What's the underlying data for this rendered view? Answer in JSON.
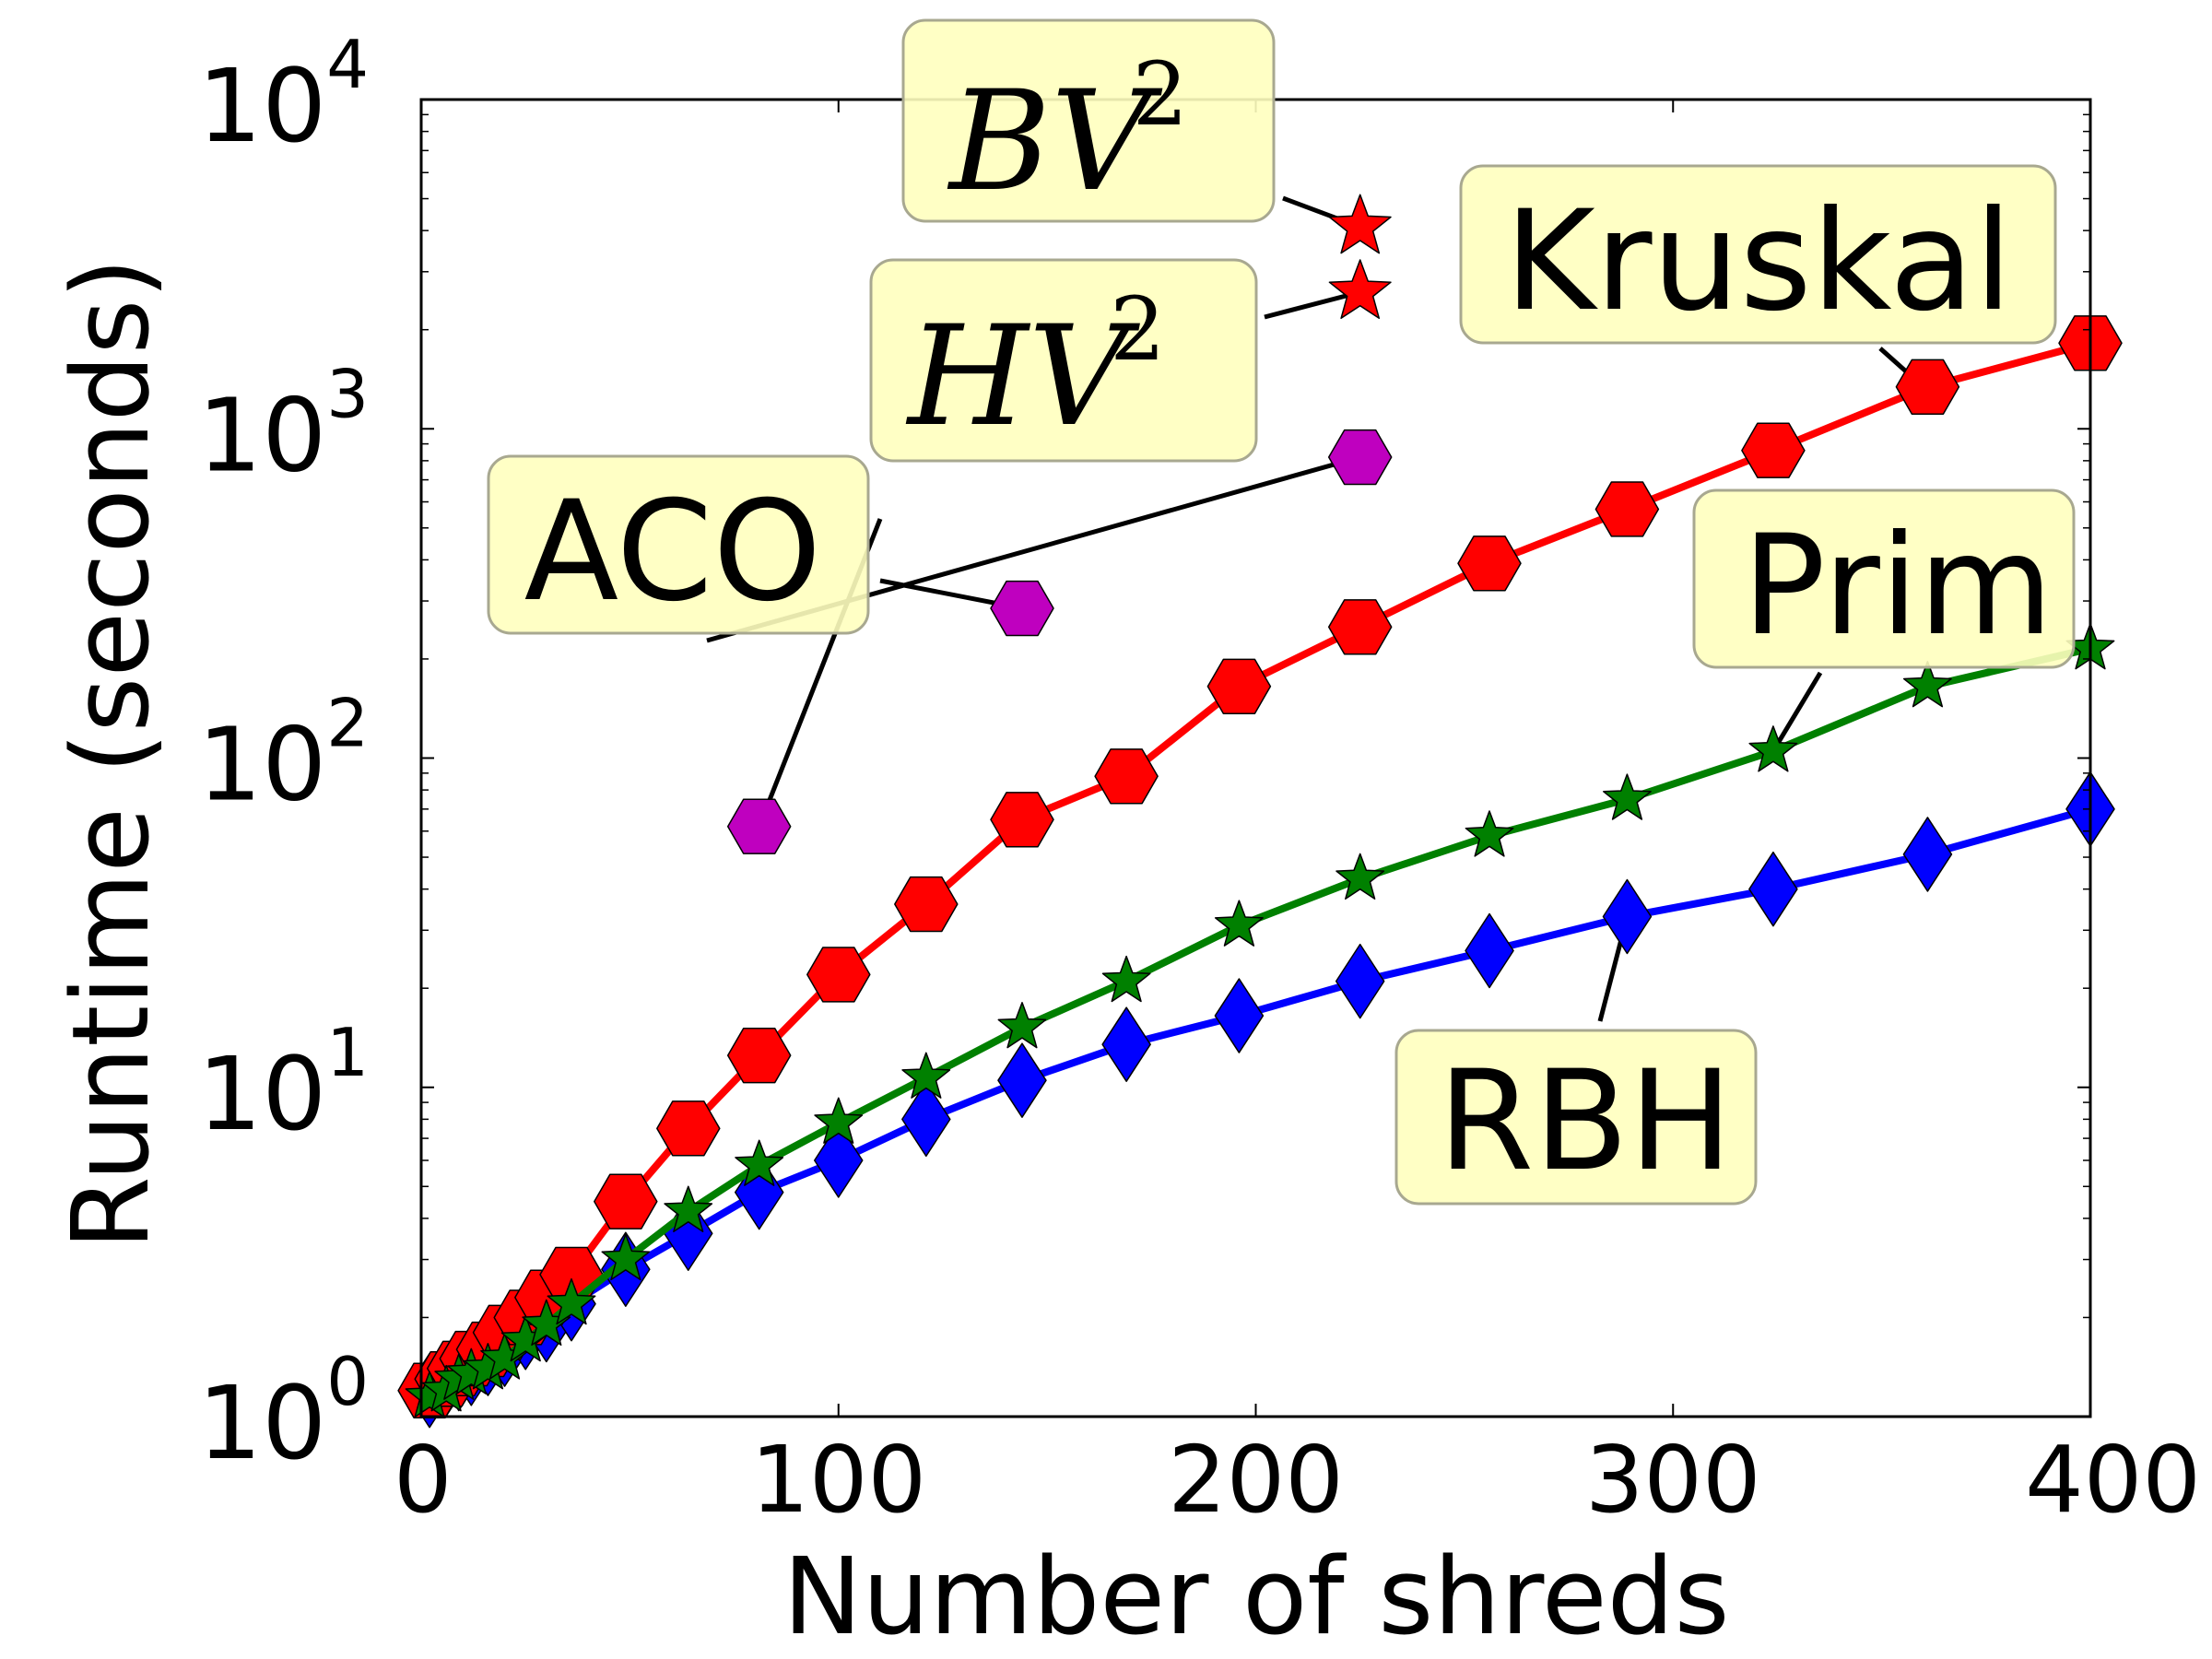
{
  "chart_data": {
    "type": "line",
    "title": "",
    "xlabel": "Number of shreds",
    "ylabel": "Runtime (seconds)",
    "xlim": [
      0,
      400
    ],
    "ylim": [
      1,
      10000
    ],
    "yscale": "log",
    "grid": false,
    "x_ticks": [
      "0",
      "100",
      "200",
      "300",
      "400"
    ],
    "y_ticks": [
      {
        "base": "10",
        "exp": "0"
      },
      {
        "base": "10",
        "exp": "1"
      },
      {
        "base": "10",
        "exp": "2"
      },
      {
        "base": "10",
        "exp": "3"
      },
      {
        "base": "10",
        "exp": "4"
      }
    ],
    "series": [
      {
        "name": "Kruskal",
        "color": "#ff0000",
        "line": true,
        "marker": "hexagon",
        "x": [
          2,
          6,
          9,
          12,
          16,
          20,
          25,
          30,
          36,
          49,
          64,
          81,
          100,
          121,
          144,
          169,
          196,
          225,
          256,
          289,
          324,
          361,
          400
        ],
        "y": [
          1.2,
          1.3,
          1.4,
          1.5,
          1.6,
          1.8,
          2.0,
          2.3,
          2.7,
          4.5,
          7.5,
          12.5,
          22,
          36,
          65,
          88,
          165,
          250,
          390,
          570,
          860,
          1340,
          1820
        ]
      },
      {
        "name": "Prim",
        "color": "#008000",
        "line": true,
        "marker": "star",
        "x": [
          2,
          6,
          9,
          12,
          16,
          20,
          25,
          30,
          36,
          49,
          64,
          81,
          100,
          121,
          144,
          169,
          196,
          225,
          256,
          289,
          324,
          361,
          400
        ],
        "y": [
          1.15,
          1.2,
          1.3,
          1.35,
          1.4,
          1.5,
          1.7,
          1.9,
          2.2,
          3.0,
          4.2,
          5.8,
          7.8,
          10.7,
          15.2,
          21,
          31,
          43,
          58,
          75,
          105,
          165,
          215
        ]
      },
      {
        "name": "RBH",
        "color": "#0000ff",
        "line": true,
        "marker": "diamond",
        "x": [
          2,
          6,
          9,
          12,
          16,
          20,
          25,
          30,
          36,
          49,
          64,
          81,
          100,
          121,
          144,
          169,
          196,
          225,
          256,
          289,
          324,
          361,
          400
        ],
        "y": [
          1.2,
          1.3,
          1.35,
          1.4,
          1.5,
          1.6,
          1.8,
          1.9,
          2.2,
          2.8,
          3.6,
          4.8,
          6.0,
          8.0,
          10.5,
          13.5,
          16.5,
          21,
          26,
          33,
          40,
          51,
          70
        ]
      },
      {
        "name": "ACO",
        "color": "#bf00bf",
        "line": false,
        "marker": "hexagon",
        "x": [
          81,
          144,
          225
        ],
        "y": [
          62,
          285,
          820
        ]
      },
      {
        "name": "HV2",
        "color": "#ff0000",
        "line": false,
        "marker": "star",
        "x": [
          225
        ],
        "y": [
          2600
        ]
      },
      {
        "name": "BV2",
        "color": "#ff0000",
        "line": false,
        "marker": "star",
        "x": [
          225
        ],
        "y": [
          4100
        ]
      }
    ],
    "annotations": [
      {
        "id": "kruskal",
        "text": "Kruskal",
        "sup": "",
        "style": "sans",
        "targets": [
          [
            360,
            1340
          ]
        ]
      },
      {
        "id": "prim",
        "text": "Prim",
        "sup": "",
        "style": "sans",
        "targets": [
          [
            324,
            105
          ]
        ]
      },
      {
        "id": "rbh",
        "text": "RBH",
        "sup": "",
        "style": "sans",
        "targets": [
          [
            289,
            33
          ]
        ]
      },
      {
        "id": "aco",
        "text": "ACO",
        "sup": "",
        "style": "sans",
        "targets": [
          [
            81,
            62
          ],
          [
            144,
            285
          ],
          [
            225,
            820
          ]
        ]
      },
      {
        "id": "bv2",
        "text": "BV",
        "sup": "2",
        "style": "serif",
        "targets": [
          [
            225,
            4100
          ]
        ]
      },
      {
        "id": "hv2",
        "text": "HV",
        "sup": "2",
        "style": "serif",
        "targets": [
          [
            225,
            2600
          ]
        ]
      }
    ],
    "annotation_box_color": "#ffffbf"
  }
}
